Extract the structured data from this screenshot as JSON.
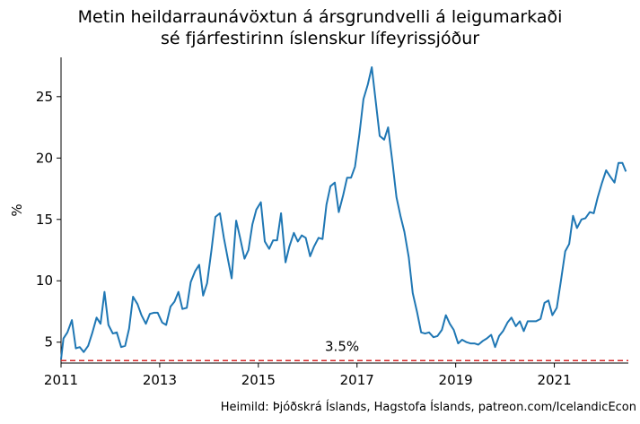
{
  "chart_data": {
    "type": "line",
    "title_lines": [
      "Metin heildarraunávöxtun á ársgrundvelli á leigumarkaði",
      "sé fjárfestirinn íslenskur lífeyrissjóður"
    ],
    "ylabel": "%",
    "xlabel": "",
    "xlim": [
      2011.0,
      2022.5
    ],
    "ylim": [
      3.3,
      28.2
    ],
    "x_ticks": [
      2011,
      2013,
      2015,
      2017,
      2019,
      2021
    ],
    "y_ticks": [
      5,
      10,
      15,
      20,
      25
    ],
    "grid": false,
    "line_color": "#1f77b4",
    "reference_line": {
      "value": 3.5,
      "label": "3.5%",
      "color": "#d62728",
      "style": "dashed"
    },
    "source": "Heimild: Þjóðskrá Íslands, Hagstofa Íslands, patreon.com/IcelandicEcon",
    "series": [
      {
        "x": [
          2011.0,
          2011.05,
          2011.13,
          2011.22,
          2011.3,
          2011.38,
          2011.46,
          2011.55,
          2011.63,
          2011.72,
          2011.8,
          2011.88,
          2011.96,
          2012.05,
          2012.13,
          2012.22,
          2012.3,
          2012.38,
          2012.46,
          2012.55,
          2012.63,
          2012.72,
          2012.8,
          2012.88,
          2012.96,
          2013.05,
          2013.13,
          2013.22,
          2013.3,
          2013.38,
          2013.46,
          2013.55,
          2013.63,
          2013.72,
          2013.8,
          2013.88,
          2013.96,
          2014.05,
          2014.13,
          2014.22,
          2014.3,
          2014.38,
          2014.46,
          2014.55,
          2014.63,
          2014.72,
          2014.8,
          2014.88,
          2014.96,
          2015.05,
          2015.13,
          2015.22,
          2015.3,
          2015.38,
          2015.46,
          2015.55,
          2015.63,
          2015.72,
          2015.8,
          2015.88,
          2015.96,
          2016.05,
          2016.13,
          2016.22,
          2016.3,
          2016.38,
          2016.46,
          2016.55,
          2016.63,
          2016.72,
          2016.8,
          2016.88,
          2016.96,
          2017.05,
          2017.13,
          2017.22,
          2017.3,
          2017.38,
          2017.46,
          2017.55,
          2017.63,
          2017.72,
          2017.8,
          2017.88,
          2017.96,
          2018.05,
          2018.13,
          2018.22,
          2018.3,
          2018.38,
          2018.46,
          2018.55,
          2018.63,
          2018.72,
          2018.8,
          2018.88,
          2018.96,
          2019.05,
          2019.13,
          2019.22,
          2019.3,
          2019.38,
          2019.46,
          2019.55,
          2019.63,
          2019.72,
          2019.8,
          2019.88,
          2019.96,
          2020.05,
          2020.13,
          2020.22,
          2020.3,
          2020.38,
          2020.46,
          2020.55,
          2020.63,
          2020.72,
          2020.8,
          2020.88,
          2020.96,
          2021.05,
          2021.13,
          2021.22,
          2021.3,
          2021.38,
          2021.46,
          2021.55,
          2021.63,
          2021.72,
          2021.8,
          2021.88,
          2021.96,
          2022.05,
          2022.13,
          2022.22,
          2022.3,
          2022.38,
          2022.45
        ],
        "y": [
          3.6,
          5.3,
          5.8,
          6.8,
          4.5,
          4.6,
          4.2,
          4.7,
          5.7,
          7.0,
          6.5,
          9.1,
          6.4,
          5.7,
          5.8,
          4.6,
          4.7,
          6.1,
          8.7,
          8.1,
          7.2,
          6.5,
          7.3,
          7.4,
          7.4,
          6.6,
          6.4,
          7.9,
          8.3,
          9.1,
          7.7,
          7.8,
          9.9,
          10.8,
          11.3,
          8.8,
          9.8,
          12.5,
          15.2,
          15.5,
          13.5,
          11.8,
          10.2,
          14.9,
          13.5,
          11.8,
          12.5,
          14.6,
          15.8,
          16.4,
          13.2,
          12.6,
          13.3,
          13.3,
          15.5,
          11.5,
          12.8,
          13.9,
          13.2,
          13.7,
          13.5,
          12.0,
          12.8,
          13.5,
          13.4,
          16.2,
          17.7,
          18.0,
          15.6,
          17.0,
          18.4,
          18.4,
          19.3,
          22.0,
          24.8,
          26.0,
          27.4,
          24.6,
          21.8,
          21.5,
          22.5,
          19.6,
          16.8,
          15.3,
          14.0,
          11.9,
          9.0,
          7.4,
          5.8,
          5.7,
          5.8,
          5.4,
          5.5,
          6.0,
          7.2,
          6.5,
          6.0,
          4.9,
          5.2,
          5.0,
          4.9,
          4.9,
          4.8,
          5.1,
          5.3,
          5.6,
          4.6,
          5.5,
          5.9,
          6.6,
          7.0,
          6.3,
          6.7,
          5.9,
          6.7,
          6.7,
          6.7,
          6.9,
          8.2,
          8.4,
          7.2,
          7.8,
          9.9,
          12.4,
          13.0,
          15.3,
          14.3,
          15.0,
          15.1,
          15.6,
          15.5,
          16.8,
          17.9,
          19.0,
          18.5,
          18.0,
          19.6,
          19.6,
          18.9
        ]
      }
    ]
  }
}
